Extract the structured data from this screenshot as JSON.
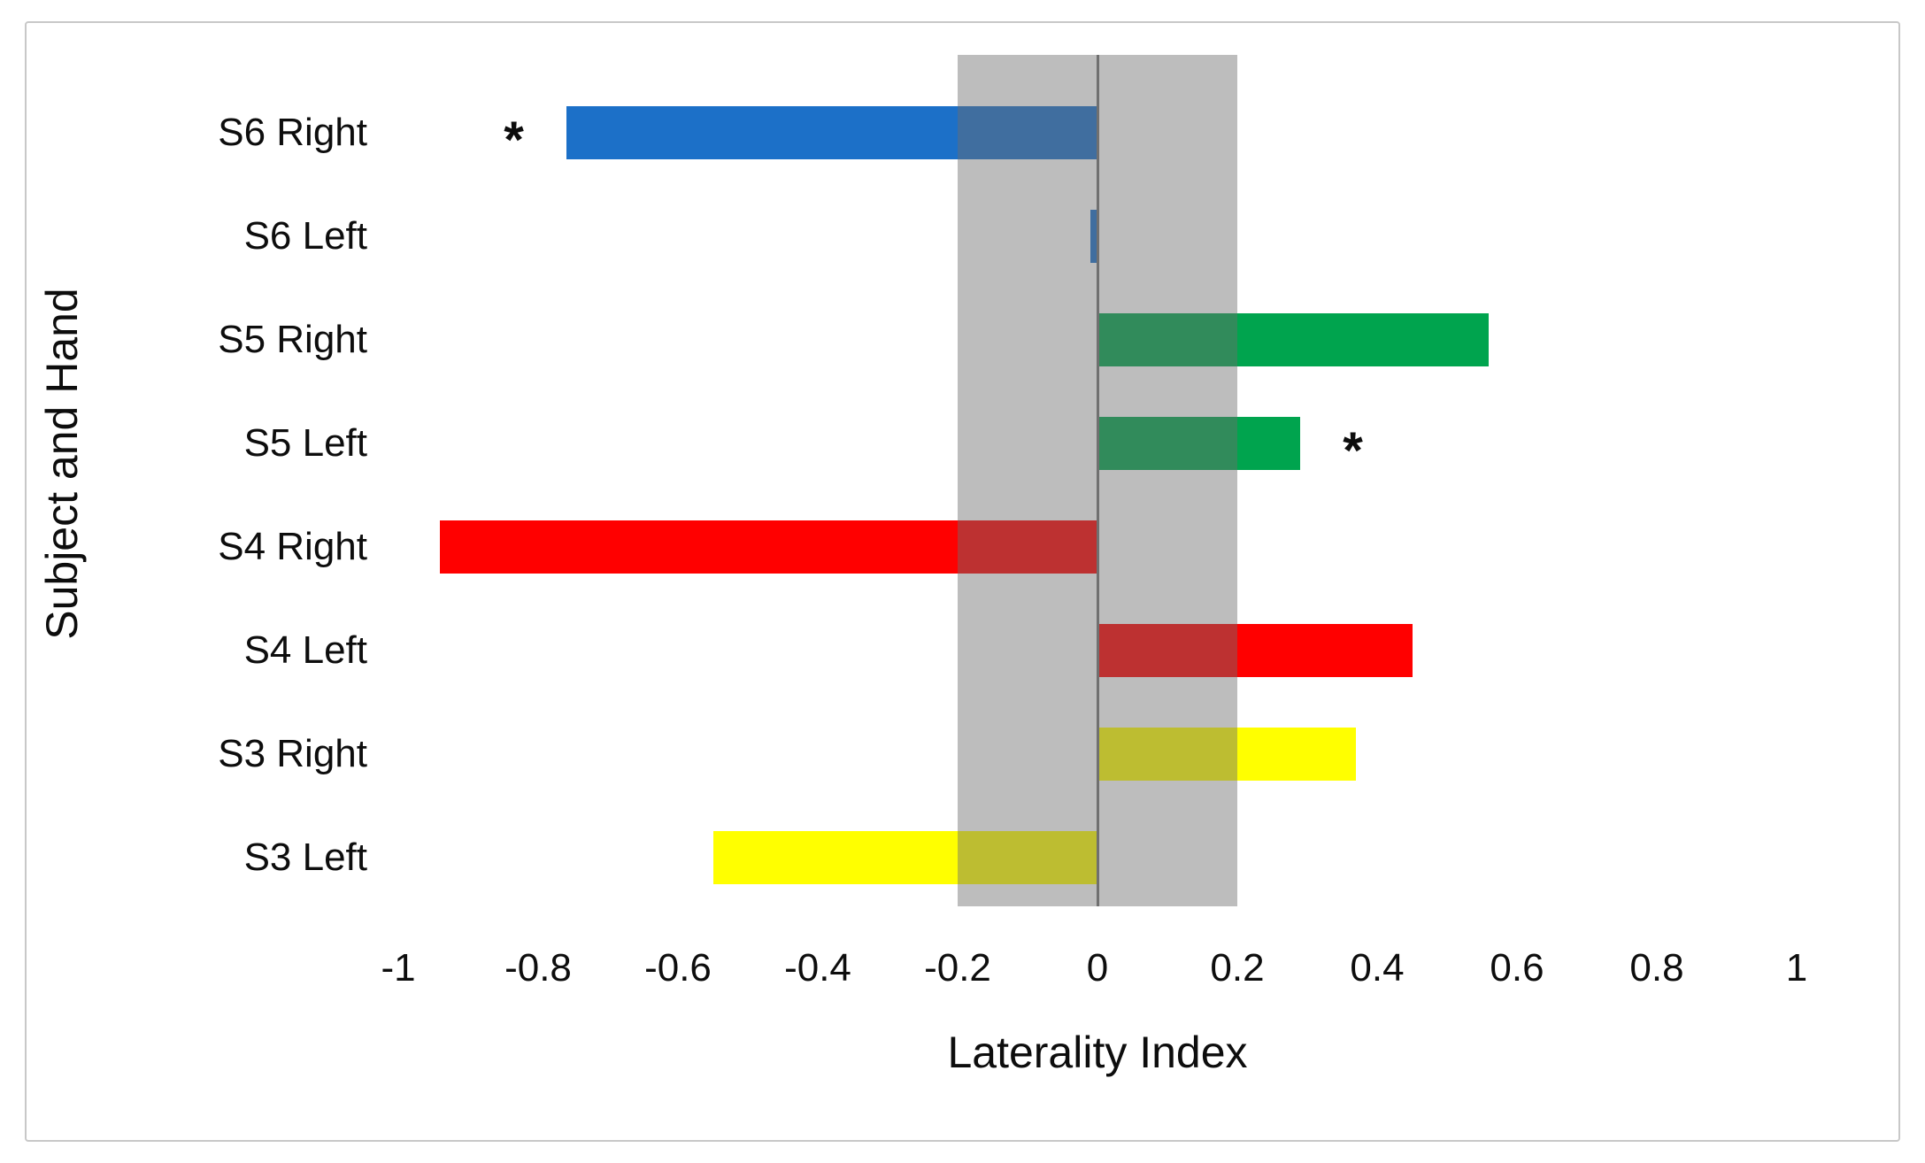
{
  "figure": {
    "background": "#FFFFFF",
    "border_color": "#C8C8C8"
  },
  "chart_data": {
    "type": "bar",
    "orientation": "horizontal",
    "title": "",
    "xlabel": "Laterality Index",
    "ylabel": "Subject and Hand",
    "xlim": [
      -1,
      1
    ],
    "xticks": [
      -1,
      -0.8,
      -0.6,
      -0.4,
      -0.2,
      0,
      0.2,
      0.4,
      0.6,
      0.8,
      1
    ],
    "xtick_labels": [
      "-1",
      "-0.8",
      "-0.6",
      "-0.4",
      "-0.2",
      "0",
      "0.2",
      "0.4",
      "0.6",
      "0.8",
      "1"
    ],
    "grid": false,
    "legend": false,
    "categories": [
      "S6 Right",
      "S6 Left",
      "S5 Right",
      "S5 Left",
      "S4 Right",
      "S4 Left",
      "S3 Right",
      "S3 Left"
    ],
    "values": [
      -0.76,
      -0.01,
      0.56,
      0.29,
      -0.94,
      0.45,
      0.37,
      -0.55
    ],
    "bar_colors": [
      "#1C70C8",
      "#1C70C8",
      "#00A44E",
      "#00A44E",
      "#FF0000",
      "#FF0000",
      "#FFFF00",
      "#FFFF00"
    ],
    "reference_band": {
      "from": -0.2,
      "to": 0.2,
      "overlay_color_rgba": "rgba(109,109,109,0.45)",
      "apparent_color": "#BDBDBD"
    },
    "zero_line_color": "#707070",
    "annotations": [
      {
        "text": "*",
        "category_index": 0,
        "x": -0.83
      },
      {
        "text": "*",
        "category_index": 3,
        "x": 0.37
      }
    ]
  }
}
